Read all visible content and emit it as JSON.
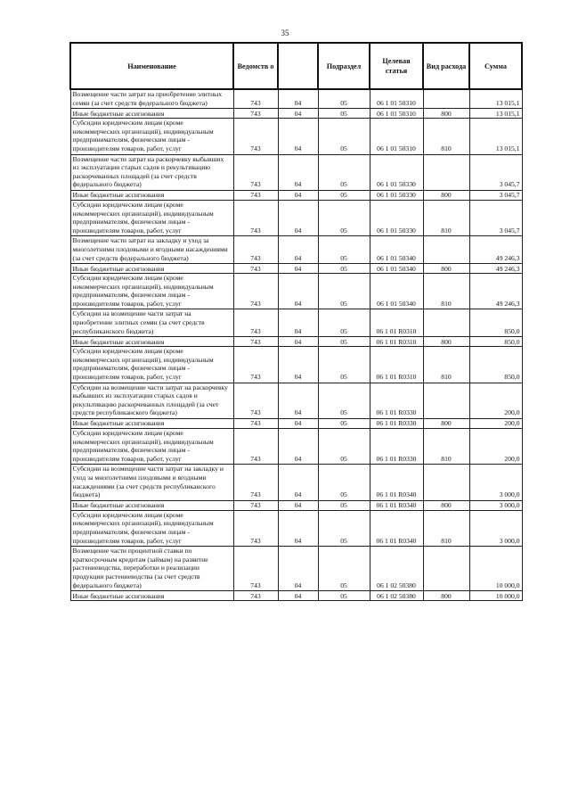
{
  "page_number": "35",
  "headers": [
    "Наименование",
    "Ведомств о",
    "",
    "Подраздел",
    "Целевая статья",
    "Вид расхода",
    "Сумма"
  ],
  "rows": [
    {
      "name": " Возмещение части затрат на приобретение элитных семян (за счет средств федерального бюджета)",
      "ved": "743",
      "razdel": "04",
      "podrazdel": "05",
      "cs": "06 1 01 50310",
      "vr": "",
      "sum": "13 015,1"
    },
    {
      "name": "Иные бюджетные ассигнования",
      "ved": "743",
      "razdel": "04",
      "podrazdel": "05",
      "cs": "06 1 01 50310",
      "vr": "800",
      "sum": "13 015,1"
    },
    {
      "name": "  Субсидии юридическим лицам (кроме некоммерческих организаций), индивидуальным предпринимателям, физическим лицам - производителям товаров, работ, услуг",
      "ved": "743",
      "razdel": "04",
      "podrazdel": "05",
      "cs": "06 1 01 50310",
      "vr": "810",
      "sum": "13 015,1"
    },
    {
      "name": " Возмещение части затрат на раскорчевку выбывших из эксплуатации старых садов и рекультивацию раскорчеванных площадей (за счет средств федерального бюджета)",
      "ved": "743",
      "razdel": "04",
      "podrazdel": "05",
      "cs": "06 1 01 50330",
      "vr": "",
      "sum": "3 045,7"
    },
    {
      "name": "Иные бюджетные ассигнования",
      "ved": "743",
      "razdel": "04",
      "podrazdel": "05",
      "cs": "06 1 01 50330",
      "vr": "800",
      "sum": "3 045,7"
    },
    {
      "name": "  Субсидии юридическим лицам (кроме некоммерческих организаций), индивидуальным предпринимателям, физическим лицам - производителям товаров, работ, услуг",
      "ved": "743",
      "razdel": "04",
      "podrazdel": "05",
      "cs": "06 1 01 50330",
      "vr": "810",
      "sum": "3 045,7"
    },
    {
      "name": " Возмещение части затрат на закладку и уход за многолетними плодовыми и ягодными насаждениями (за счет средств федерального бюджета)",
      "ved": "743",
      "razdel": "04",
      "podrazdel": "05",
      "cs": "06 1 01 50340",
      "vr": "",
      "sum": "49 246,3"
    },
    {
      "name": "Иные бюджетные ассигнования",
      "ved": "743",
      "razdel": "04",
      "podrazdel": "05",
      "cs": "06 1 01 50340",
      "vr": "800",
      "sum": "49 246,3"
    },
    {
      "name": "  Субсидии юридическим лицам (кроме некоммерческих организаций), индивидуальным предпринимателям, физическим лицам - производителям товаров, работ, услуг",
      "ved": "743",
      "razdel": "04",
      "podrazdel": "05",
      "cs": "06 1 01 50340",
      "vr": "810",
      "sum": "49 246,3"
    },
    {
      "name": " Субсидии на возмещение части затрат на приобретение элитных семян (за счет средств республиканского бюджета)",
      "ved": "743",
      "razdel": "04",
      "podrazdel": "05",
      "cs": "06 1 01 R0310",
      "vr": "",
      "sum": "850,0"
    },
    {
      "name": "Иные бюджетные ассигнования",
      "ved": "743",
      "razdel": "04",
      "podrazdel": "05",
      "cs": "06 1 01 R0310",
      "vr": "800",
      "sum": "850,0"
    },
    {
      "name": "  Субсидии юридическим лицам (кроме некоммерческих организаций), индивидуальным предпринимателям, физическим лицам - производителям товаров, работ, услуг",
      "ved": "743",
      "razdel": "04",
      "podrazdel": "05",
      "cs": "06 1 01 R0310",
      "vr": "810",
      "sum": "850,0"
    },
    {
      "name": " Субсидии на возмещение части затрат на раскорчевку выбывших из эксплуатации старых садов и рекультивацию раскорчеванных площадей (за счет средств республиканского бюджета)",
      "ved": "743",
      "razdel": "04",
      "podrazdel": "05",
      "cs": "06 1 01 R0330",
      "vr": "",
      "sum": "200,0"
    },
    {
      "name": "Иные бюджетные ассигнования",
      "ved": "743",
      "razdel": "04",
      "podrazdel": "05",
      "cs": "06 1 01 R0330",
      "vr": "800",
      "sum": "200,0"
    },
    {
      "name": "  Субсидии юридическим лицам (кроме некоммерческих организаций), индивидуальным предпринимателям, физическим лицам - производителям товаров, работ, услуг",
      "ved": "743",
      "razdel": "04",
      "podrazdel": "05",
      "cs": "06 1 01 R0330",
      "vr": "810",
      "sum": "200,0"
    },
    {
      "name": " Субсидии на возмещение части затрат на закладку и уход за многолетними плодовыми и ягодными насаждениями (за счет средств республиканского бюджета)",
      "ved": "743",
      "razdel": "04",
      "podrazdel": "05",
      "cs": "06 1 01 R0340",
      "vr": "",
      "sum": "3 000,0"
    },
    {
      "name": "Иные бюджетные ассигнования",
      "ved": "743",
      "razdel": "04",
      "podrazdel": "05",
      "cs": "06 1 01 R0340",
      "vr": "800",
      "sum": "3 000,0"
    },
    {
      "name": "  Субсидии юридическим лицам (кроме некоммерческих организаций), индивидуальным предпринимателям, физическим лицам - производителям товаров, работ, услуг",
      "ved": "743",
      "razdel": "04",
      "podrazdel": "05",
      "cs": "06 1 01 R0340",
      "vr": "810",
      "sum": "3 000,0"
    },
    {
      "name": " Возмещение части процентной ставки по краткосрочным кредитам (займам) на развитие растениеводства, переработки и реализации продукции растениеводства (за счет средств федерального бюджета)",
      "ved": "743",
      "razdel": "04",
      "podrazdel": "05",
      "cs": "06 1 02 50380",
      "vr": "",
      "sum": "10 000,0"
    },
    {
      "name": "Иные бюджетные ассигнования",
      "ved": "743",
      "razdel": "04",
      "podrazdel": "05",
      "cs": "06 1 02 50380",
      "vr": "800",
      "sum": "10 000,0"
    }
  ]
}
